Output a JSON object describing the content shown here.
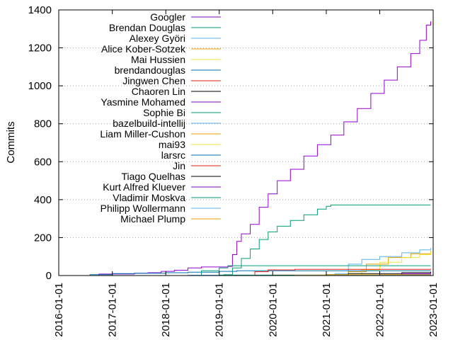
{
  "chart_data": {
    "type": "line",
    "ylabel": "Commits",
    "xlabel": "",
    "title": "",
    "ylim": [
      0,
      1400
    ],
    "xlim": [
      "2016-01-01",
      "2023-01-01"
    ],
    "yticks": [
      0,
      200,
      400,
      600,
      800,
      1000,
      1200,
      1400
    ],
    "yticklabels": [
      "0",
      "200",
      "400",
      "600",
      "800",
      "1000",
      "1200",
      "1400"
    ],
    "xticks": [
      "2016-01-01",
      "2017-01-01",
      "2018-01-01",
      "2019-01-01",
      "2020-01-01",
      "2021-01-01",
      "2022-01-01",
      "2023-01-01"
    ],
    "grid": "horizontal dotted",
    "legend_position": "top-left",
    "series": [
      {
        "name": "Googler",
        "color": "#9400d3",
        "points": [
          [
            "2016-06-01",
            0
          ],
          [
            "2016-10-01",
            8
          ],
          [
            "2017-06-01",
            12
          ],
          [
            "2017-09-01",
            15
          ],
          [
            "2017-12-01",
            22
          ],
          [
            "2018-03-01",
            28
          ],
          [
            "2018-06-01",
            40
          ],
          [
            "2018-09-01",
            45
          ],
          [
            "2019-01-01",
            45
          ],
          [
            "2019-03-01",
            48
          ],
          [
            "2019-04-01",
            110
          ],
          [
            "2019-05-01",
            180
          ],
          [
            "2019-06-01",
            220
          ],
          [
            "2019-08-01",
            270
          ],
          [
            "2019-10-01",
            360
          ],
          [
            "2019-12-01",
            430
          ],
          [
            "2020-02-01",
            500
          ],
          [
            "2020-05-01",
            560
          ],
          [
            "2020-08-01",
            630
          ],
          [
            "2020-11-01",
            690
          ],
          [
            "2021-02-01",
            740
          ],
          [
            "2021-05-01",
            810
          ],
          [
            "2021-08-01",
            880
          ],
          [
            "2021-11-01",
            960
          ],
          [
            "2022-02-01",
            1030
          ],
          [
            "2022-05-01",
            1100
          ],
          [
            "2022-08-01",
            1170
          ],
          [
            "2022-10-01",
            1240
          ],
          [
            "2022-11-15",
            1320
          ],
          [
            "2022-12-15",
            1340
          ]
        ]
      },
      {
        "name": "Brendan Douglas",
        "color": "#009e73",
        "points": [
          [
            "2019-01-01",
            0
          ],
          [
            "2019-02-01",
            5
          ],
          [
            "2019-04-01",
            40
          ],
          [
            "2019-06-01",
            90
          ],
          [
            "2019-08-01",
            140
          ],
          [
            "2019-10-01",
            190
          ],
          [
            "2019-12-01",
            230
          ],
          [
            "2020-02-01",
            260
          ],
          [
            "2020-05-01",
            290
          ],
          [
            "2020-08-01",
            320
          ],
          [
            "2020-11-01",
            350
          ],
          [
            "2021-01-01",
            365
          ],
          [
            "2021-02-01",
            372
          ],
          [
            "2022-12-15",
            372
          ]
        ]
      },
      {
        "name": "Alexey Györi",
        "color": "#56b4e9",
        "points": [
          [
            "2021-01-01",
            0
          ],
          [
            "2021-03-01",
            10
          ],
          [
            "2021-06-01",
            60
          ],
          [
            "2021-09-01",
            85
          ],
          [
            "2022-01-01",
            100
          ],
          [
            "2022-06-01",
            120
          ],
          [
            "2022-10-01",
            135
          ],
          [
            "2022-12-15",
            145
          ]
        ]
      },
      {
        "name": "Alice Kober-Sotzek",
        "color": "#e69f00",
        "points": [
          [
            "2021-03-01",
            0
          ],
          [
            "2021-06-01",
            20
          ],
          [
            "2021-10-01",
            60
          ],
          [
            "2022-03-01",
            95
          ],
          [
            "2022-08-01",
            115
          ],
          [
            "2022-12-15",
            130
          ]
        ]
      },
      {
        "name": "Mai Hussien",
        "color": "#f0e442",
        "points": [
          [
            "2021-05-01",
            0
          ],
          [
            "2021-09-01",
            30
          ],
          [
            "2022-01-01",
            70
          ],
          [
            "2022-06-01",
            95
          ],
          [
            "2022-10-01",
            110
          ],
          [
            "2022-12-15",
            125
          ]
        ]
      },
      {
        "name": "brendandouglas",
        "color": "#0072b2",
        "points": [
          [
            "2016-06-01",
            0
          ],
          [
            "2016-08-01",
            5
          ],
          [
            "2017-01-01",
            10
          ],
          [
            "2017-06-01",
            12
          ],
          [
            "2018-01-01",
            15
          ],
          [
            "2018-06-01",
            18
          ],
          [
            "2019-01-01",
            22
          ],
          [
            "2019-05-01",
            25
          ],
          [
            "2022-12-15",
            25
          ]
        ]
      },
      {
        "name": "Jingwen Chen",
        "color": "#e51e10",
        "points": [
          [
            "2019-06-01",
            0
          ],
          [
            "2019-09-01",
            20
          ],
          [
            "2019-12-01",
            30
          ],
          [
            "2020-06-01",
            33
          ],
          [
            "2022-12-15",
            35
          ]
        ]
      },
      {
        "name": "Chaoren Lin",
        "color": "#000000",
        "points": [
          [
            "2020-06-01",
            0
          ],
          [
            "2021-01-01",
            5
          ],
          [
            "2021-06-01",
            10
          ],
          [
            "2022-06-01",
            15
          ],
          [
            "2022-12-15",
            20
          ]
        ]
      },
      {
        "name": "Yasmine Mohamed",
        "color": "#9400d3",
        "points": [
          [
            "2021-06-01",
            0
          ],
          [
            "2022-01-01",
            5
          ],
          [
            "2022-06-01",
            10
          ],
          [
            "2022-12-15",
            15
          ]
        ]
      },
      {
        "name": "Sophie Bi",
        "color": "#009e73",
        "points": [
          [
            "2018-06-01",
            0
          ],
          [
            "2018-09-01",
            25
          ],
          [
            "2019-01-01",
            40
          ],
          [
            "2019-03-01",
            52
          ],
          [
            "2022-12-15",
            52
          ]
        ]
      },
      {
        "name": "bazelbuild-intellij",
        "color": "#56b4e9",
        "points": [
          [
            "2018-01-01",
            0
          ],
          [
            "2018-06-01",
            2
          ],
          [
            "2019-01-01",
            3
          ],
          [
            "2022-12-15",
            3
          ]
        ]
      },
      {
        "name": "Liam Miller-Cushon",
        "color": "#e69f00",
        "points": [
          [
            "2019-01-01",
            0
          ],
          [
            "2020-01-01",
            3
          ],
          [
            "2021-01-01",
            5
          ],
          [
            "2022-12-15",
            6
          ]
        ]
      },
      {
        "name": "mai93",
        "color": "#f0e442",
        "points": [
          [
            "2020-06-01",
            0
          ],
          [
            "2021-06-01",
            3
          ],
          [
            "2022-12-15",
            5
          ]
        ]
      },
      {
        "name": "larsrc",
        "color": "#0072b2",
        "points": [
          [
            "2020-01-01",
            0
          ],
          [
            "2021-01-01",
            2
          ],
          [
            "2022-12-15",
            4
          ]
        ]
      },
      {
        "name": "Jin",
        "color": "#e51e10",
        "points": [
          [
            "2020-01-01",
            0
          ],
          [
            "2021-01-01",
            2
          ],
          [
            "2022-12-15",
            3
          ]
        ]
      },
      {
        "name": "Tiago Quelhas",
        "color": "#000000",
        "points": [
          [
            "2021-09-01",
            0
          ],
          [
            "2022-06-01",
            3
          ],
          [
            "2022-12-15",
            5
          ]
        ]
      },
      {
        "name": "Kurt Alfred Kluever",
        "color": "#9400d3",
        "points": [
          [
            "2019-01-01",
            0
          ],
          [
            "2020-01-01",
            2
          ],
          [
            "2022-12-15",
            3
          ]
        ]
      },
      {
        "name": "Vladimir Moskva",
        "color": "#009e73",
        "points": [
          [
            "2018-01-01",
            0
          ],
          [
            "2019-01-01",
            2
          ],
          [
            "2022-12-15",
            2
          ]
        ]
      },
      {
        "name": "Philipp Wollermann",
        "color": "#56b4e9",
        "points": [
          [
            "2019-01-01",
            0
          ],
          [
            "2020-06-01",
            2
          ],
          [
            "2022-12-15",
            2
          ]
        ]
      },
      {
        "name": "Michael Plump",
        "color": "#e69f00",
        "points": [
          [
            "2019-06-01",
            0
          ],
          [
            "2020-06-01",
            1
          ],
          [
            "2022-12-15",
            2
          ]
        ]
      }
    ]
  }
}
